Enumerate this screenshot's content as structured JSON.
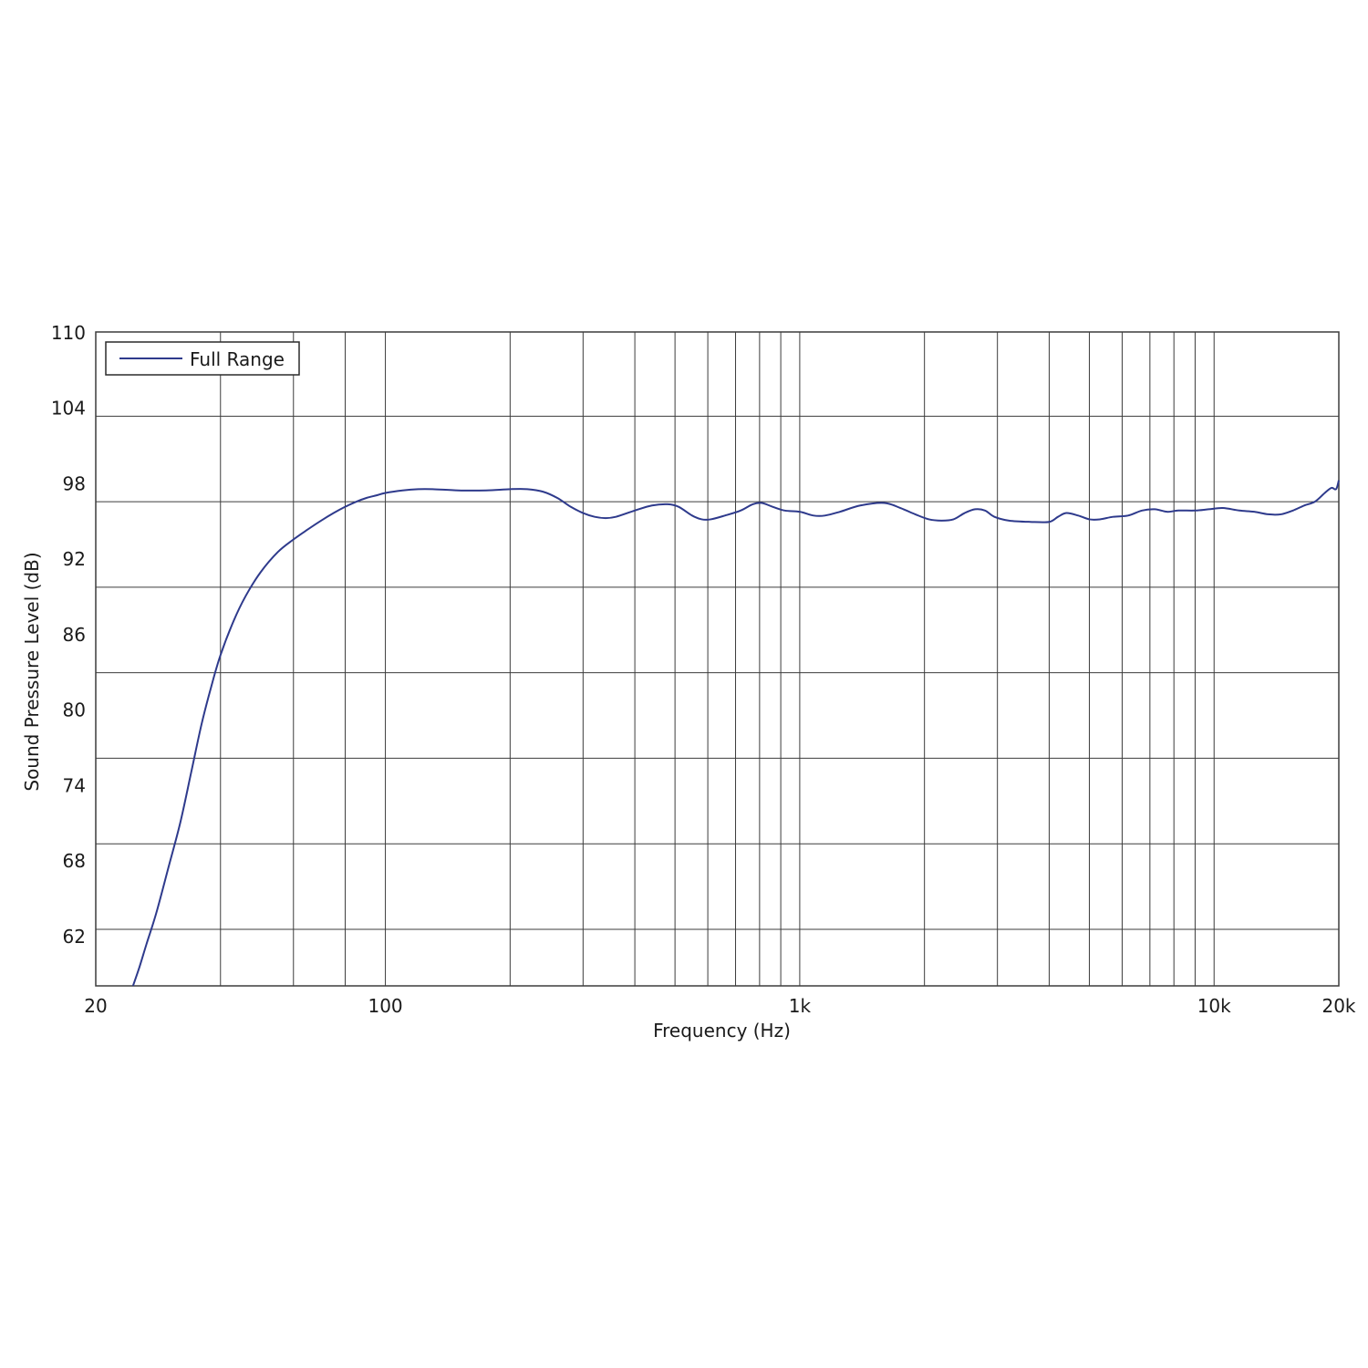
{
  "chart_data": {
    "type": "line",
    "title": "",
    "xlabel": "Frequency (Hz)",
    "ylabel": "Sound Pressure Level (dB)",
    "xscale": "log",
    "xlim": [
      20,
      20000
    ],
    "ylim": [
      58,
      110
    ],
    "grid": true,
    "legend_position": "top-left",
    "x_ticks": [
      {
        "value": 20,
        "label": "20"
      },
      {
        "value": 100,
        "label": "100"
      },
      {
        "value": 1000,
        "label": "1k"
      },
      {
        "value": 10000,
        "label": "10k"
      },
      {
        "value": 20000,
        "label": "20k"
      }
    ],
    "x_gridlines": [
      40,
      60,
      80,
      100,
      200,
      300,
      400,
      500,
      600,
      700,
      800,
      900,
      1000,
      2000,
      3000,
      4000,
      5000,
      6000,
      7000,
      8000,
      9000,
      10000
    ],
    "y_ticks": [
      {
        "value": 110,
        "label": "110"
      },
      {
        "value": 104,
        "label": "104"
      },
      {
        "value": 98,
        "label": "98"
      },
      {
        "value": 92,
        "label": "92"
      },
      {
        "value": 86,
        "label": "86"
      },
      {
        "value": 80,
        "label": "80"
      },
      {
        "value": 74,
        "label": "74"
      },
      {
        "value": 68,
        "label": "68"
      },
      {
        "value": 62,
        "label": "62"
      }
    ],
    "y_gridlines": [
      103.3,
      96.5,
      89.7,
      82.9,
      76.1,
      69.3,
      62.5
    ],
    "colors": {
      "series": "#2e3a8c",
      "grid": "#3c3c3c"
    },
    "series": [
      {
        "name": "Full Range",
        "points": [
          [
            24.6,
            58
          ],
          [
            25.5,
            59.5
          ],
          [
            26.5,
            61.3
          ],
          [
            28,
            63.8
          ],
          [
            30,
            67.5
          ],
          [
            32,
            71
          ],
          [
            34,
            75
          ],
          [
            36,
            78.8
          ],
          [
            38,
            81.8
          ],
          [
            40,
            84.3
          ],
          [
            43,
            87
          ],
          [
            46,
            89
          ],
          [
            50,
            90.9
          ],
          [
            55,
            92.5
          ],
          [
            60,
            93.5
          ],
          [
            65,
            94.3
          ],
          [
            70,
            95.0
          ],
          [
            75,
            95.6
          ],
          [
            80,
            96.1
          ],
          [
            85,
            96.5
          ],
          [
            90,
            96.8
          ],
          [
            95,
            97.0
          ],
          [
            100,
            97.2
          ],
          [
            110,
            97.4
          ],
          [
            120,
            97.5
          ],
          [
            130,
            97.5
          ],
          [
            150,
            97.4
          ],
          [
            175,
            97.4
          ],
          [
            200,
            97.5
          ],
          [
            220,
            97.5
          ],
          [
            240,
            97.3
          ],
          [
            260,
            96.8
          ],
          [
            280,
            96.1
          ],
          [
            300,
            95.6
          ],
          [
            320,
            95.3
          ],
          [
            340,
            95.2
          ],
          [
            360,
            95.3
          ],
          [
            400,
            95.8
          ],
          [
            440,
            96.2
          ],
          [
            480,
            96.3
          ],
          [
            510,
            96.1
          ],
          [
            550,
            95.4
          ],
          [
            580,
            95.1
          ],
          [
            610,
            95.1
          ],
          [
            660,
            95.4
          ],
          [
            720,
            95.8
          ],
          [
            770,
            96.3
          ],
          [
            810,
            96.4
          ],
          [
            860,
            96.1
          ],
          [
            920,
            95.8
          ],
          [
            1000,
            95.7
          ],
          [
            1080,
            95.4
          ],
          [
            1150,
            95.4
          ],
          [
            1250,
            95.7
          ],
          [
            1400,
            96.2
          ],
          [
            1600,
            96.4
          ],
          [
            1750,
            96.0
          ],
          [
            1900,
            95.5
          ],
          [
            2050,
            95.1
          ],
          [
            2200,
            95.0
          ],
          [
            2350,
            95.1
          ],
          [
            2500,
            95.6
          ],
          [
            2650,
            95.9
          ],
          [
            2800,
            95.8
          ],
          [
            2950,
            95.3
          ],
          [
            3200,
            95.0
          ],
          [
            3600,
            94.9
          ],
          [
            4000,
            94.9
          ],
          [
            4200,
            95.3
          ],
          [
            4400,
            95.6
          ],
          [
            4700,
            95.4
          ],
          [
            5000,
            95.1
          ],
          [
            5300,
            95.1
          ],
          [
            5700,
            95.3
          ],
          [
            6200,
            95.4
          ],
          [
            6700,
            95.8
          ],
          [
            7200,
            95.9
          ],
          [
            7700,
            95.7
          ],
          [
            8200,
            95.8
          ],
          [
            9000,
            95.8
          ],
          [
            9700,
            95.9
          ],
          [
            10500,
            96.0
          ],
          [
            11500,
            95.8
          ],
          [
            12500,
            95.7
          ],
          [
            13500,
            95.5
          ],
          [
            14500,
            95.5
          ],
          [
            15500,
            95.8
          ],
          [
            16500,
            96.2
          ],
          [
            17500,
            96.5
          ],
          [
            18500,
            97.2
          ],
          [
            19200,
            97.6
          ],
          [
            19700,
            97.5
          ],
          [
            20000,
            98.2
          ]
        ]
      }
    ]
  }
}
